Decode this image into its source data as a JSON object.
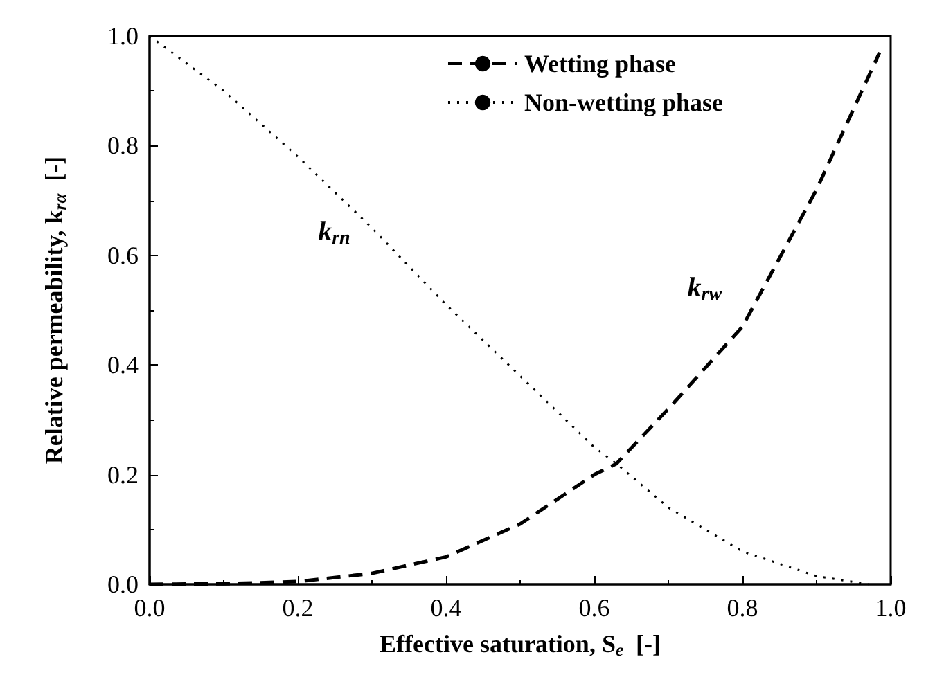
{
  "chart_data": {
    "type": "line",
    "xlabel": "Effective saturation, S$_{e}$  [-]",
    "ylabel": "Relative permeability, k$_{rα}$  [-]",
    "xlim": [
      0,
      1
    ],
    "ylim": [
      0,
      1
    ],
    "xticks": [
      {
        "value": 0,
        "label": "0.0"
      },
      0.2,
      0.4,
      0.6,
      0.8,
      {
        "value": 1,
        "label": "1.0"
      }
    ],
    "yticks": [
      {
        "value": 0,
        "label": "0.0"
      },
      0.2,
      0.4,
      0.6,
      0.8,
      {
        "value": 1,
        "label": "1.0"
      }
    ],
    "grid": false,
    "legend": "top right",
    "marker": "none",
    "annotations": [
      {
        "text": "k$_{rn}$",
        "x": 0.32,
        "y": 0.622
      },
      {
        "text": "k$_{rw}$",
        "x": 0.82,
        "y": 0.52
      }
    ],
    "series": [
      {
        "name": "Wetting phase",
        "color": "#000000",
        "line_style": "dashed",
        "x": [
          0,
          0.1,
          0.2,
          0.3,
          0.4,
          0.5,
          0.6,
          0.63,
          0.7,
          0.8,
          0.9,
          0.985
        ],
        "values": [
          0,
          0.001,
          0.005,
          0.02,
          0.05,
          0.11,
          0.2,
          0.22,
          0.32,
          0.47,
          0.72,
          0.97
        ]
      },
      {
        "name": "Non-wetting phase",
        "color": "#000000",
        "line_style": "dotted",
        "x": [
          0,
          0.1,
          0.2,
          0.3,
          0.4,
          0.5,
          0.6,
          0.63,
          0.7,
          0.8,
          0.9,
          0.97
        ],
        "values": [
          1,
          0.9,
          0.78,
          0.65,
          0.51,
          0.38,
          0.25,
          0.22,
          0.14,
          0.06,
          0.015,
          0
        ]
      }
    ]
  }
}
